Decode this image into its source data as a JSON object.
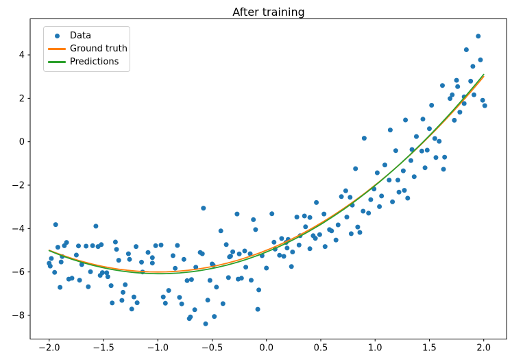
{
  "title": "After training",
  "chart_data": {
    "type": "scatter",
    "title": "After training",
    "xlabel": "",
    "ylabel": "",
    "grid": false,
    "xlim": [
      -2.175,
      2.213
    ],
    "ylim": [
      -9.09,
      5.66
    ],
    "x_ticks": [
      -2.0,
      -1.5,
      -1.0,
      -0.5,
      0.0,
      0.5,
      1.0,
      1.5,
      2.0
    ],
    "x_tick_labels": [
      "−2.0",
      "−1.5",
      "−1.0",
      "−0.5",
      "0.0",
      "0.5",
      "1.0",
      "1.5",
      "2.0"
    ],
    "y_ticks": [
      4,
      2,
      0,
      -2,
      -4,
      -6,
      -8
    ],
    "y_tick_labels": [
      "4",
      "2",
      "0",
      "−2",
      "−4",
      "−6",
      "−8"
    ],
    "legend": {
      "position": "upper left",
      "entries": [
        {
          "label": "Data",
          "type": "marker",
          "color": "#1f77b4"
        },
        {
          "label": "Ground truth",
          "type": "line",
          "color": "#ff7f0e"
        },
        {
          "label": "Predictions",
          "type": "line",
          "color": "#2ca02c"
        }
      ]
    },
    "scatter": {
      "name": "Data",
      "color": "#1f77b4",
      "points": [
        [
          -1.94,
          -3.82
        ],
        [
          -1.57,
          -3.89
        ],
        [
          -1.92,
          -4.86
        ],
        [
          -1.86,
          -4.79
        ],
        [
          -1.84,
          -4.64
        ],
        [
          -1.73,
          -4.8
        ],
        [
          -1.66,
          -4.81
        ],
        [
          -1.6,
          -4.79
        ],
        [
          -1.55,
          -4.83
        ],
        [
          -1.52,
          -4.74
        ],
        [
          -1.39,
          -4.62
        ],
        [
          -1.38,
          -4.96
        ],
        [
          -1.98,
          -5.38
        ],
        [
          -1.88,
          -5.29
        ],
        [
          -1.75,
          -5.22
        ],
        [
          -1.27,
          -5.16
        ],
        [
          -1.26,
          -5.42
        ],
        [
          -1.2,
          -4.83
        ],
        [
          -2.0,
          -5.6
        ],
        [
          -1.99,
          -5.73
        ],
        [
          -1.89,
          -5.54
        ],
        [
          -1.7,
          -5.66
        ],
        [
          -1.62,
          -5.99
        ],
        [
          -1.53,
          -6.16
        ],
        [
          -1.51,
          -6.03
        ],
        [
          -1.47,
          -6.04
        ],
        [
          -1.46,
          -6.22
        ],
        [
          -1.36,
          -5.46
        ],
        [
          -1.15,
          -5.55
        ],
        [
          -1.14,
          -6.0
        ],
        [
          -1.09,
          -5.1
        ],
        [
          -1.05,
          -5.34
        ],
        [
          -1.05,
          -5.59
        ],
        [
          -1.95,
          -6.02
        ],
        [
          -1.82,
          -6.33
        ],
        [
          -1.79,
          -6.29
        ],
        [
          -1.72,
          -6.38
        ],
        [
          -1.9,
          -6.71
        ],
        [
          -1.64,
          -6.68
        ],
        [
          -1.43,
          -6.63
        ],
        [
          -1.3,
          -6.59
        ],
        [
          -1.32,
          -6.94
        ],
        [
          -1.33,
          -7.31
        ],
        [
          -1.42,
          -7.43
        ],
        [
          -1.22,
          -7.15
        ],
        [
          -1.19,
          -7.42
        ],
        [
          -1.24,
          -7.71
        ],
        [
          -0.58,
          -3.06
        ],
        [
          -0.27,
          -3.33
        ],
        [
          0.05,
          -3.32
        ],
        [
          -0.12,
          -3.59
        ],
        [
          -0.1,
          -4.05
        ],
        [
          -0.42,
          -4.11
        ],
        [
          -1.02,
          -4.79
        ],
        [
          -0.97,
          -4.76
        ],
        [
          -0.82,
          -4.78
        ],
        [
          -0.37,
          -4.74
        ],
        [
          -0.86,
          -5.25
        ],
        [
          -0.76,
          -5.42
        ],
        [
          -0.61,
          -5.1
        ],
        [
          -0.59,
          -5.16
        ],
        [
          -0.31,
          -5.07
        ],
        [
          -0.33,
          -5.27
        ],
        [
          -0.34,
          -5.31
        ],
        [
          -0.25,
          -5.17
        ],
        [
          -0.2,
          -5.03
        ],
        [
          -0.15,
          -5.16
        ],
        [
          -0.04,
          -5.25
        ],
        [
          0.07,
          -4.63
        ],
        [
          0.08,
          -4.95
        ],
        [
          -0.84,
          -5.83
        ],
        [
          -0.65,
          -5.78
        ],
        [
          -0.5,
          -5.63
        ],
        [
          -0.49,
          -5.69
        ],
        [
          -0.19,
          -5.78
        ],
        [
          0.0,
          -5.82
        ],
        [
          -0.73,
          -6.4
        ],
        [
          -0.69,
          -6.35
        ],
        [
          -0.52,
          -6.39
        ],
        [
          -0.35,
          -6.26
        ],
        [
          -0.26,
          -6.33
        ],
        [
          -0.23,
          -6.29
        ],
        [
          -0.14,
          -6.38
        ],
        [
          -0.9,
          -6.85
        ],
        [
          -0.46,
          -6.7
        ],
        [
          -0.07,
          -6.83
        ],
        [
          -0.95,
          -7.15
        ],
        [
          -0.93,
          -7.44
        ],
        [
          -0.8,
          -7.17
        ],
        [
          -0.54,
          -7.3
        ],
        [
          -0.78,
          -7.47
        ],
        [
          -0.4,
          -7.46
        ],
        [
          -0.08,
          -7.72
        ],
        [
          -0.66,
          -7.74
        ],
        [
          -0.71,
          -8.15
        ],
        [
          -0.7,
          -8.07
        ],
        [
          -0.48,
          -8.05
        ],
        [
          -0.56,
          -8.39
        ],
        [
          0.73,
          -2.26
        ],
        [
          0.77,
          -2.56
        ],
        [
          0.69,
          -2.53
        ],
        [
          0.99,
          -2.18
        ],
        [
          1.22,
          -2.32
        ],
        [
          1.06,
          -2.5
        ],
        [
          0.96,
          -2.67
        ],
        [
          1.16,
          -2.77
        ],
        [
          0.46,
          -2.8
        ],
        [
          0.79,
          -2.92
        ],
        [
          1.04,
          -2.99
        ],
        [
          0.89,
          -3.2
        ],
        [
          0.94,
          -3.29
        ],
        [
          0.28,
          -3.47
        ],
        [
          0.35,
          -3.42
        ],
        [
          0.4,
          -3.49
        ],
        [
          0.53,
          -3.33
        ],
        [
          0.74,
          -3.47
        ],
        [
          0.36,
          -3.92
        ],
        [
          0.58,
          -4.05
        ],
        [
          0.6,
          -4.11
        ],
        [
          0.66,
          -3.83
        ],
        [
          0.84,
          -3.93
        ],
        [
          0.86,
          -4.18
        ],
        [
          0.78,
          -4.24
        ],
        [
          0.43,
          -4.33
        ],
        [
          0.49,
          -4.28
        ],
        [
          0.45,
          -4.45
        ],
        [
          0.14,
          -4.46
        ],
        [
          0.2,
          -4.5
        ],
        [
          0.18,
          -4.64
        ],
        [
          0.31,
          -4.33
        ],
        [
          0.3,
          -4.76
        ],
        [
          0.54,
          -4.83
        ],
        [
          0.64,
          -4.53
        ],
        [
          0.19,
          -4.9
        ],
        [
          0.24,
          -5.08
        ],
        [
          0.12,
          -5.23
        ],
        [
          0.16,
          -5.28
        ],
        [
          0.4,
          -4.93
        ],
        [
          0.23,
          -5.75
        ],
        [
          1.95,
          4.86
        ],
        [
          1.84,
          4.24
        ],
        [
          1.97,
          3.77
        ],
        [
          1.9,
          3.47
        ],
        [
          1.88,
          2.79
        ],
        [
          1.75,
          2.83
        ],
        [
          1.76,
          2.54
        ],
        [
          1.62,
          2.59
        ],
        [
          1.71,
          2.16
        ],
        [
          1.69,
          1.99
        ],
        [
          1.82,
          2.07
        ],
        [
          1.91,
          2.16
        ],
        [
          1.99,
          1.91
        ],
        [
          2.01,
          1.66
        ],
        [
          1.82,
          1.76
        ],
        [
          1.52,
          1.68
        ],
        [
          1.78,
          1.36
        ],
        [
          1.73,
          0.99
        ],
        [
          1.44,
          1.04
        ],
        [
          1.28,
          1.0
        ],
        [
          1.14,
          0.54
        ],
        [
          1.5,
          0.6
        ],
        [
          1.38,
          0.24
        ],
        [
          1.55,
          0.15
        ],
        [
          1.59,
          0.02
        ],
        [
          1.34,
          -0.36
        ],
        [
          1.43,
          -0.43
        ],
        [
          1.48,
          -0.39
        ],
        [
          1.56,
          -0.73
        ],
        [
          1.64,
          -0.71
        ],
        [
          1.19,
          -0.41
        ],
        [
          1.33,
          -0.87
        ],
        [
          1.46,
          -1.2
        ],
        [
          1.63,
          -1.27
        ],
        [
          1.36,
          -1.61
        ],
        [
          1.26,
          -1.34
        ],
        [
          1.13,
          -1.77
        ],
        [
          1.21,
          -1.77
        ],
        [
          1.27,
          -2.24
        ],
        [
          1.3,
          -2.6
        ],
        [
          0.9,
          0.16
        ],
        [
          1.09,
          -1.07
        ],
        [
          0.82,
          -1.24
        ],
        [
          1.02,
          -1.43
        ]
      ]
    },
    "curves": [
      {
        "name": "Ground truth",
        "color": "#ff7f0e",
        "poly": [
          1.0,
          2.0,
          -5.0
        ],
        "x_range": [
          -2.0,
          2.0
        ]
      },
      {
        "name": "Predictions",
        "color": "#2ca02c",
        "poly": [
          1.03,
          2.03,
          -5.08
        ],
        "x_range": [
          -2.0,
          2.0
        ]
      }
    ]
  }
}
